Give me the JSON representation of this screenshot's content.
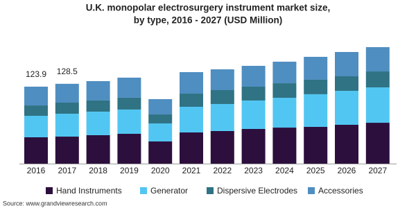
{
  "chart_data": {
    "type": "stacked_bar",
    "title_lines": [
      "U.K. monopolar electrosurgery instrument market size,",
      "by type, 2016 - 2027 (USD Million)"
    ],
    "categories": [
      "2016",
      "2017",
      "2018",
      "2019",
      "2020",
      "2021",
      "2022",
      "2023",
      "2024",
      "2025",
      "2026",
      "2027"
    ],
    "series": [
      {
        "name": "Hand Instruments",
        "color": "#2d0f3d",
        "values": [
          42.4,
          43.5,
          45.8,
          48,
          35.7,
          50.2,
          52.5,
          55.8,
          58,
          59.2,
          62.5,
          65.8
        ]
      },
      {
        "name": "Generator",
        "color": "#52c6f2",
        "values": [
          34.6,
          36.8,
          37.9,
          39.1,
          29,
          41.3,
          43.5,
          45.8,
          48,
          52.5,
          54.7,
          56.9
        ]
      },
      {
        "name": "Dispersive Electrodes",
        "color": "#2f7384",
        "values": [
          16.7,
          17.9,
          17.9,
          19,
          14.5,
          21.2,
          22.3,
          22.3,
          23.4,
          23.4,
          23.4,
          25.7
        ]
      },
      {
        "name": "Accessories",
        "color": "#4f8ec1",
        "values": [
          30.2,
          30.3,
          31.2,
          32.3,
          24.6,
          34.6,
          33.5,
          33.5,
          34.7,
          36.8,
          39.1,
          39.1
        ]
      }
    ],
    "total_labels": [
      {
        "category": "2016",
        "value": 123.9
      },
      {
        "category": "2017",
        "value": 128.5
      }
    ],
    "legend": "bottom",
    "source": "Source: www.grandviewresearch.com"
  }
}
